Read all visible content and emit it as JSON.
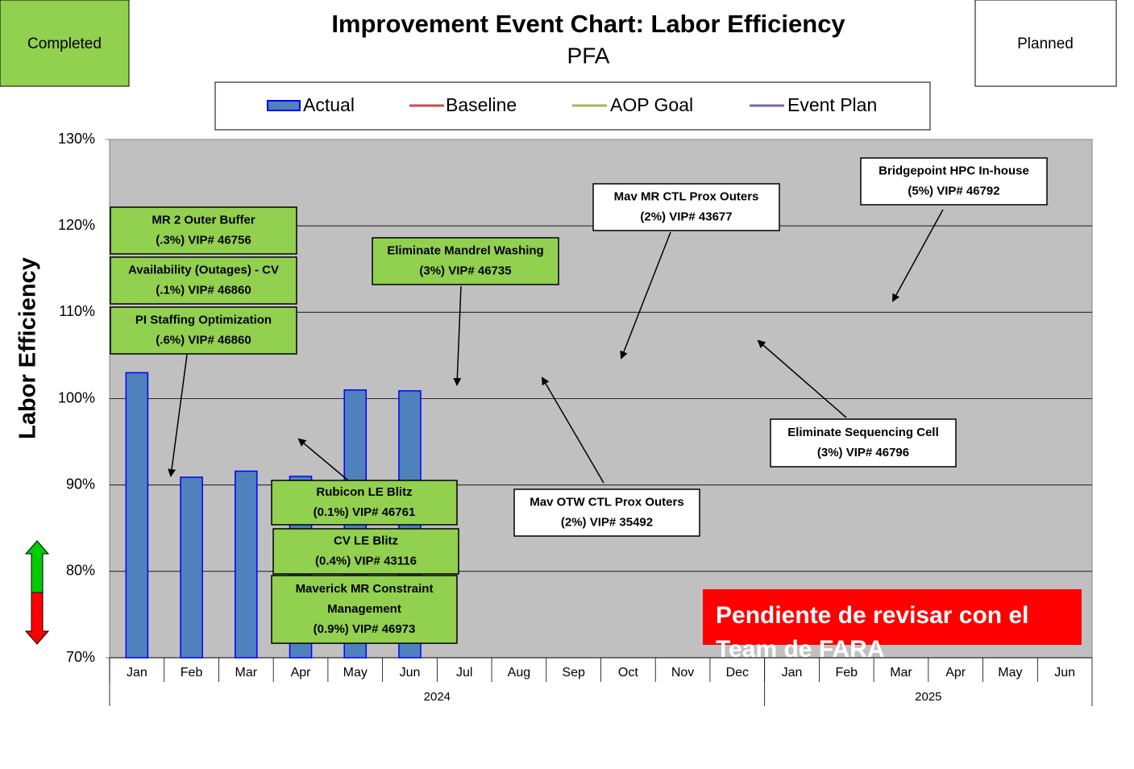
{
  "chart_data": {
    "type": "bar",
    "title": "Improvement Event Chart: Labor Efficiency",
    "subtitle": "PFA",
    "y_label": "Labor Efficiency",
    "status_labels": [
      "Completed",
      "Planned"
    ],
    "categories": [
      "Jan",
      "Feb",
      "Mar",
      "Apr",
      "May",
      "Jun",
      "Jul",
      "Aug",
      "Sep",
      "Oct",
      "Nov",
      "Dec",
      "Jan",
      "Feb",
      "Mar",
      "Apr",
      "May",
      "Jun"
    ],
    "years": [
      "2024",
      "2025"
    ],
    "series": [
      {
        "name": "Actual",
        "color": "#4f81bd",
        "values": [
          103,
          90.9,
          91.6,
          91,
          101,
          100.9,
          null,
          null,
          null,
          null,
          null,
          null,
          null,
          null,
          null,
          null,
          null,
          null
        ]
      },
      {
        "name": "Baseline",
        "color": "#c0504d",
        "values": [
          null,
          null,
          null,
          null,
          null,
          null,
          null,
          null,
          null,
          null,
          null,
          null,
          null,
          null,
          null,
          null,
          null,
          null
        ]
      },
      {
        "name": "AOP Goal",
        "color": "#9bbb59",
        "values": [
          null,
          null,
          null,
          null,
          null,
          null,
          null,
          null,
          null,
          null,
          null,
          null,
          null,
          null,
          null,
          null,
          null,
          null
        ]
      },
      {
        "name": "Event Plan",
        "color": "#8064a2",
        "values": [
          null,
          null,
          null,
          null,
          null,
          null,
          null,
          null,
          null,
          null,
          null,
          null,
          null,
          null,
          null,
          null,
          null,
          null
        ]
      }
    ],
    "ylim": [
      70,
      130
    ],
    "yticks": [
      {
        "value": 70,
        "label": "70%"
      },
      {
        "value": 80,
        "label": "80%"
      },
      {
        "value": 90,
        "label": "90%"
      },
      {
        "value": 100,
        "label": "100%"
      },
      {
        "value": 110,
        "label": "110%"
      },
      {
        "value": 120,
        "label": "120%"
      },
      {
        "value": 130,
        "label": "130%"
      }
    ],
    "grid": true,
    "annotations": [
      {
        "lines": [
          "MR 2 Outer Buffer",
          "(.3%) VIP# 46756"
        ],
        "color": "#92d050"
      },
      {
        "lines": [
          "Availability  (Outages) - CV",
          "(.1%) VIP# 46860"
        ],
        "color": "#92d050"
      },
      {
        "lines": [
          "PI Staffing Optimization",
          "(.6%) VIP# 46860"
        ],
        "color": "#92d050"
      },
      {
        "lines": [
          "Eliminate  Mandrel Washing",
          "(3%) VIP# 46735"
        ],
        "color": "#92d050"
      },
      {
        "lines": [
          "Mav MR  CTL Prox Outers",
          "(2%) VIP# 43677"
        ],
        "color": "#ffffff"
      },
      {
        "lines": [
          "Bridgepoint HPC In-house",
          "(5%) VIP# 46792"
        ],
        "color": "#ffffff"
      },
      {
        "lines": [
          "Eliminate  Sequencing Cell",
          "(3%) VIP# 46796"
        ],
        "color": "#ffffff"
      },
      {
        "lines": [
          "Mav OTW CTL Prox Outers",
          "(2%) VIP# 35492"
        ],
        "color": "#ffffff"
      },
      {
        "lines": [
          "Rubicon LE Blitz",
          "(0.1%) VIP# 46761"
        ],
        "color": "#92d050"
      },
      {
        "lines": [
          "CV LE Blitz",
          "(0.4%) VIP# 43116"
        ],
        "color": "#92d050"
      },
      {
        "lines": [
          "Maverick  MR Constraint",
          "Management",
          "(0.9%) VIP# 46973"
        ],
        "color": "#92d050"
      }
    ],
    "note": [
      "Pendiente de revisar con el",
      "Team de FARA"
    ]
  }
}
